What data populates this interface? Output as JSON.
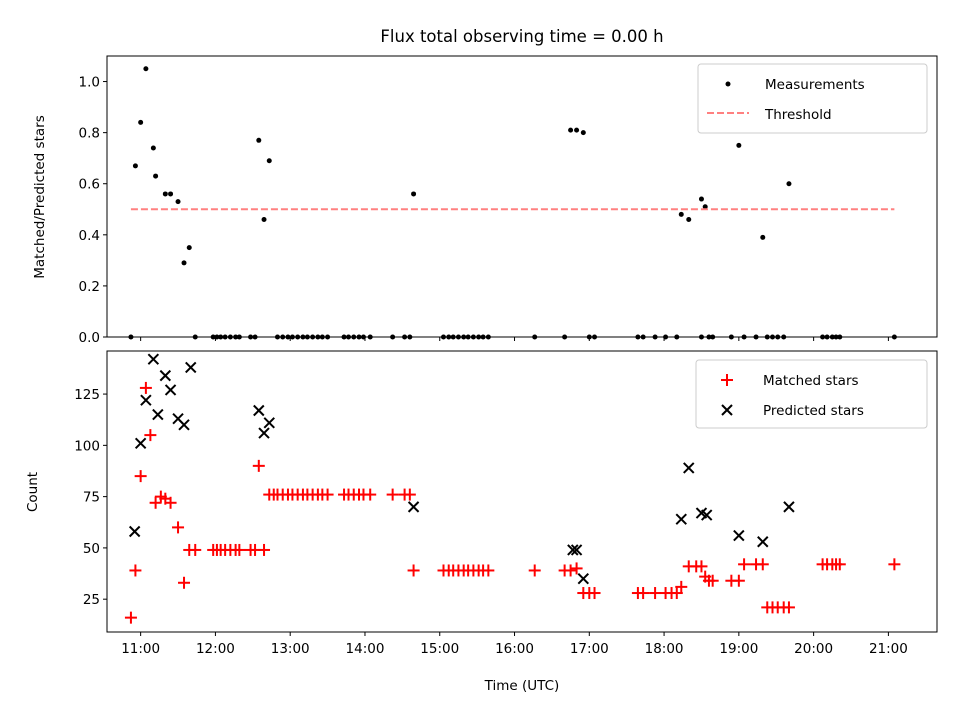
{
  "chart_data": [
    {
      "type": "scatter",
      "title": "Flux total observing time = 0.00 h",
      "xlabel": "",
      "ylabel": "Matched/Predicted stars",
      "xlim": [
        10.55,
        21.65
      ],
      "ylim": [
        0.0,
        1.1
      ],
      "yticks": [
        0.0,
        0.2,
        0.4,
        0.6,
        0.8,
        1.0
      ],
      "ytick_labels": [
        "0.0",
        "0.2",
        "0.4",
        "0.6",
        "0.8",
        "1.0"
      ],
      "legend": {
        "position": "top-right",
        "entries": [
          "Measurements",
          "Threshold"
        ]
      },
      "series": [
        {
          "name": "Measurements",
          "marker": "dot",
          "color": "#000000",
          "x": [
            10.87,
            10.93,
            11.0,
            11.07,
            11.17,
            11.2,
            11.33,
            11.4,
            11.5,
            11.58,
            11.65,
            11.73,
            11.97,
            12.02,
            12.07,
            12.13,
            12.2,
            12.27,
            12.32,
            12.47,
            12.53,
            12.58,
            12.65,
            12.72,
            12.83,
            12.9,
            12.97,
            13.03,
            13.1,
            13.17,
            13.23,
            13.3,
            13.37,
            13.43,
            13.5,
            13.72,
            13.78,
            13.85,
            13.92,
            13.98,
            14.07,
            14.37,
            14.53,
            14.6,
            14.65,
            15.05,
            15.12,
            15.18,
            15.25,
            15.32,
            15.38,
            15.45,
            15.52,
            15.58,
            15.65,
            16.27,
            16.67,
            16.75,
            16.83,
            16.92,
            17.0,
            17.07,
            17.65,
            17.72,
            17.88,
            18.02,
            18.17,
            18.23,
            18.33,
            18.5,
            18.55,
            18.6,
            18.5,
            18.65,
            18.9,
            19.0,
            19.07,
            19.23,
            19.32,
            19.38,
            19.45,
            19.52,
            19.6,
            19.67,
            20.12,
            20.18,
            20.25,
            20.3,
            20.35,
            21.08
          ],
          "y": [
            0.0,
            0.67,
            0.84,
            1.05,
            0.74,
            0.63,
            0.56,
            0.56,
            0.53,
            0.29,
            0.35,
            0.0,
            0.0,
            0.0,
            0.0,
            0.0,
            0.0,
            0.0,
            0.0,
            0.0,
            0.0,
            0.77,
            0.46,
            0.69,
            0.0,
            0.0,
            0.0,
            0.0,
            0.0,
            0.0,
            0.0,
            0.0,
            0.0,
            0.0,
            0.0,
            0.0,
            0.0,
            0.0,
            0.0,
            0.0,
            0.0,
            0.0,
            0.0,
            0.0,
            0.56,
            0.0,
            0.0,
            0.0,
            0.0,
            0.0,
            0.0,
            0.0,
            0.0,
            0.0,
            0.0,
            0.0,
            0.0,
            0.81,
            0.81,
            0.8,
            0.0,
            0.0,
            0.0,
            0.0,
            0.0,
            0.0,
            0.0,
            0.48,
            0.46,
            0.54,
            0.51,
            0.0,
            0.0,
            0.0,
            0.0,
            0.75,
            0.0,
            0.0,
            0.39,
            0.0,
            0.0,
            0.0,
            0.0,
            0.6,
            0.0,
            0.0,
            0.0,
            0.0,
            0.0,
            0.0
          ]
        },
        {
          "name": "Threshold",
          "style": "dashed",
          "color": "#ff8080",
          "x": [
            10.87,
            21.08
          ],
          "y": [
            0.5,
            0.5
          ]
        }
      ]
    },
    {
      "type": "scatter",
      "title": "",
      "xlabel": "Time (UTC)",
      "ylabel": "Count",
      "xlim": [
        10.55,
        21.65
      ],
      "ylim": [
        9,
        146
      ],
      "yticks": [
        25,
        50,
        75,
        100,
        125
      ],
      "ytick_labels": [
        "25",
        "50",
        "75",
        "100",
        "125"
      ],
      "xticks": [
        11,
        12,
        13,
        14,
        15,
        16,
        17,
        18,
        19,
        20,
        21
      ],
      "xtick_labels": [
        "11:00",
        "12:00",
        "13:00",
        "14:00",
        "15:00",
        "16:00",
        "17:00",
        "18:00",
        "19:00",
        "20:00",
        "21:00"
      ],
      "legend": {
        "position": "top-right",
        "entries": [
          "Matched stars",
          "Predicted stars"
        ]
      },
      "series": [
        {
          "name": "Matched stars",
          "marker": "plus",
          "color": "#ff0000",
          "x": [
            10.87,
            10.93,
            11.0,
            11.07,
            11.13,
            11.2,
            11.27,
            11.33,
            11.4,
            11.5,
            11.58,
            11.65,
            11.73,
            11.97,
            12.02,
            12.07,
            12.13,
            12.2,
            12.27,
            12.32,
            12.47,
            12.53,
            12.58,
            12.65,
            12.72,
            12.78,
            12.83,
            12.9,
            12.97,
            13.03,
            13.1,
            13.17,
            13.23,
            13.3,
            13.37,
            13.43,
            13.5,
            13.72,
            13.78,
            13.85,
            13.92,
            13.98,
            14.07,
            14.37,
            14.53,
            14.6,
            14.65,
            15.05,
            15.12,
            15.18,
            15.25,
            15.32,
            15.38,
            15.45,
            15.52,
            15.58,
            15.65,
            16.27,
            16.67,
            16.75,
            16.83,
            16.92,
            17.0,
            17.07,
            17.65,
            17.72,
            17.88,
            18.02,
            18.1,
            18.17,
            18.23,
            18.33,
            18.43,
            18.5,
            18.55,
            18.6,
            18.65,
            18.9,
            19.0,
            19.07,
            19.23,
            19.32,
            19.38,
            19.45,
            19.52,
            19.6,
            19.67,
            20.12,
            20.18,
            20.25,
            20.3,
            20.35,
            21.08
          ],
          "y": [
            16,
            39,
            85,
            128,
            105,
            72,
            75,
            74,
            72,
            60,
            33,
            49,
            49,
            49,
            49,
            49,
            49,
            49,
            49,
            49,
            49,
            49,
            90,
            49,
            76,
            76,
            76,
            76,
            76,
            76,
            76,
            76,
            76,
            76,
            76,
            76,
            76,
            76,
            76,
            76,
            76,
            76,
            76,
            76,
            76,
            76,
            39,
            39,
            39,
            39,
            39,
            39,
            39,
            39,
            39,
            39,
            39,
            39,
            39,
            39,
            40,
            28,
            28,
            28,
            28,
            28,
            28,
            28,
            28,
            28,
            31,
            41,
            41,
            41,
            36,
            34,
            34,
            34,
            34,
            42,
            42,
            42,
            21,
            21,
            21,
            21,
            21,
            42,
            42,
            42,
            42,
            42,
            42
          ]
        },
        {
          "name": "Predicted stars",
          "marker": "cross",
          "color": "#000000",
          "x": [
            10.92,
            11.0,
            11.07,
            11.17,
            11.23,
            11.33,
            11.4,
            11.5,
            11.58,
            11.67,
            12.58,
            12.65,
            12.72,
            14.65,
            16.78,
            16.83,
            16.92,
            18.23,
            18.33,
            18.5,
            18.57,
            19.0,
            19.32,
            19.67
          ],
          "y": [
            58,
            101,
            122,
            142,
            115,
            134,
            127,
            113,
            110,
            138,
            117,
            106,
            111,
            70,
            49,
            49,
            35,
            64,
            89,
            67,
            66,
            56,
            53,
            70
          ]
        }
      ]
    }
  ]
}
